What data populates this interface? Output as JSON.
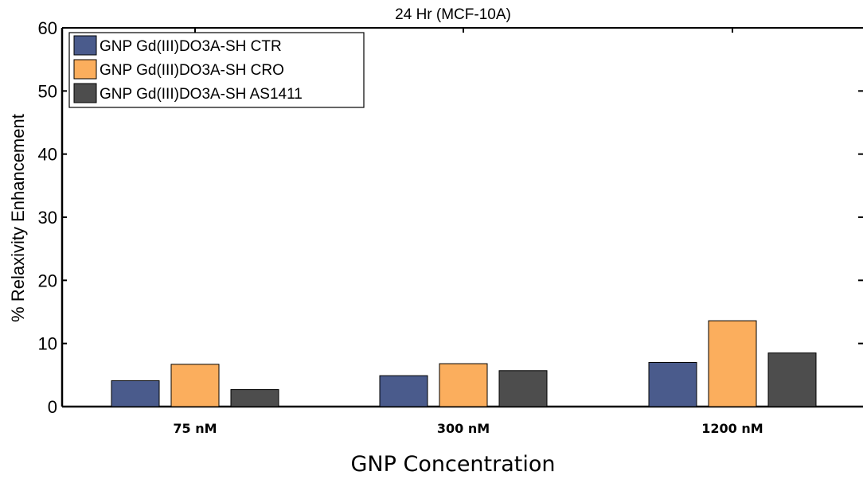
{
  "chart_data": {
    "type": "bar",
    "title": "24 Hr (MCF-10A)",
    "xlabel": "GNP Concentration",
    "ylabel": "% Relaxivity Enhancement",
    "categories": [
      "75 nM",
      "300 nM",
      "1200 nM"
    ],
    "ylim": [
      0,
      60
    ],
    "yticks": [
      0,
      10,
      20,
      30,
      40,
      50,
      60
    ],
    "legend_position": "top-left",
    "grid": false,
    "series": [
      {
        "name": "GNP Gd(III)DO3A-SH CTR",
        "color": "#4a5b8c",
        "values": [
          4.1,
          4.9,
          7.0
        ]
      },
      {
        "name": "GNP Gd(III)DO3A-SH CRO",
        "color": "#fbae5d",
        "values": [
          6.7,
          6.8,
          13.6
        ]
      },
      {
        "name": "GNP Gd(III)DO3A-SH AS1411",
        "color": "#4d4d4d",
        "values": [
          2.7,
          5.7,
          8.5
        ]
      }
    ]
  }
}
